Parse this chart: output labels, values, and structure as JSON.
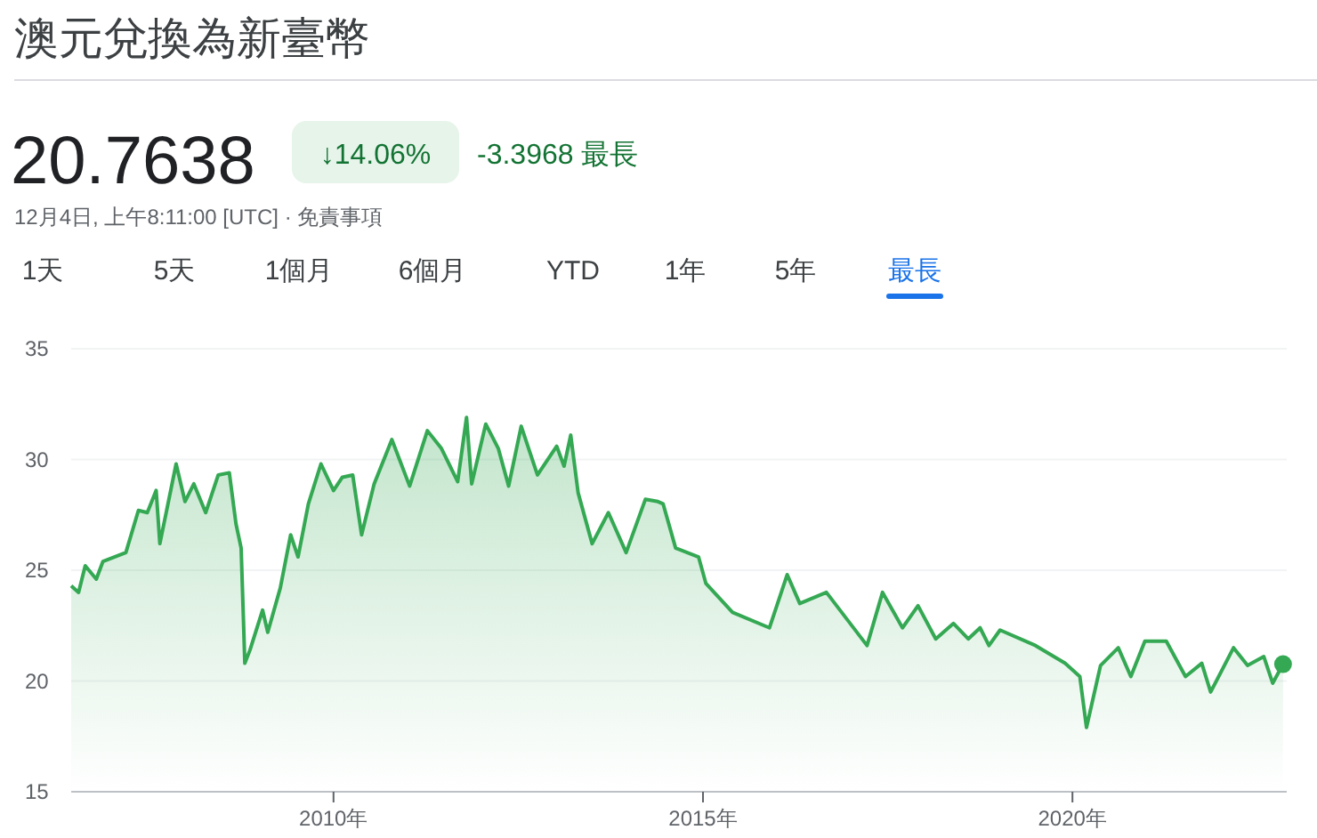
{
  "chart_data": {
    "type": "area",
    "title": "澳元兌換為新臺幣",
    "annotations": [
      "20.7638",
      "↓14.06%",
      "-3.3968 最長",
      "12月4日, 上午8:11:00 [UTC] · 免責事項",
      "1天",
      "5天",
      "1個月",
      "6個月",
      "YTD",
      "1年",
      "5年",
      "最長"
    ],
    "x": [
      2006.45,
      2006.55,
      2006.64,
      2006.79,
      2006.88,
      2007.19,
      2007.36,
      2007.48,
      2007.6,
      2007.65,
      2007.87,
      2007.99,
      2008.11,
      2008.27,
      2008.44,
      2008.59,
      2008.68,
      2008.75,
      2008.8,
      2008.87,
      2009.04,
      2009.11,
      2009.28,
      2009.42,
      2009.52,
      2009.66,
      2009.83,
      2010.0,
      2010.12,
      2010.26,
      2010.38,
      2010.55,
      2010.79,
      2011.03,
      2011.27,
      2011.46,
      2011.68,
      2011.8,
      2011.87,
      2012.06,
      2012.23,
      2012.37,
      2012.54,
      2012.76,
      2013.02,
      2013.12,
      2013.21,
      2013.31,
      2013.5,
      2013.72,
      2013.96,
      2014.22,
      2014.39,
      2014.46,
      2014.63,
      2014.94,
      2015.04,
      2015.4,
      2015.9,
      2016.14,
      2016.31,
      2016.67,
      2017.22,
      2017.43,
      2017.7,
      2017.91,
      2018.15,
      2018.39,
      2018.59,
      2018.75,
      2018.87,
      2019.02,
      2019.5,
      2019.9,
      2020.1,
      2020.19,
      2020.38,
      2020.62,
      2020.79,
      2020.98,
      2021.27,
      2021.53,
      2021.75,
      2021.87,
      2022.18,
      2022.37,
      2022.59,
      2022.71,
      2022.85
    ],
    "series": [
      {
        "color": "#34a853",
        "values": [
          24.3,
          24.0,
          25.2,
          24.6,
          25.4,
          25.8,
          27.7,
          27.6,
          28.6,
          26.2,
          29.8,
          28.1,
          28.9,
          27.6,
          29.3,
          29.4,
          27.1,
          26.0,
          20.8,
          21.4,
          23.2,
          22.2,
          24.2,
          26.6,
          25.6,
          28.0,
          29.8,
          28.6,
          29.2,
          29.3,
          26.6,
          28.9,
          30.9,
          28.8,
          31.3,
          30.5,
          29.0,
          31.9,
          28.9,
          31.6,
          30.5,
          28.8,
          31.5,
          29.3,
          30.6,
          29.7,
          31.1,
          28.5,
          26.2,
          27.6,
          25.8,
          28.2,
          28.1,
          28.0,
          26.0,
          25.6,
          24.4,
          23.1,
          22.4,
          24.8,
          23.5,
          24.0,
          21.6,
          24.0,
          22.4,
          23.4,
          21.9,
          22.6,
          21.9,
          22.4,
          21.6,
          22.3,
          21.6,
          20.8,
          20.2,
          17.9,
          20.7,
          21.5,
          20.2,
          21.8,
          21.8,
          20.2,
          20.8,
          19.5,
          21.5,
          20.7,
          21.1,
          19.9,
          20.76
        ]
      }
    ],
    "xlim": [
      2006.45,
      2022.9
    ],
    "xticks": [
      {
        "value": 2010,
        "label": "2010年"
      },
      {
        "value": 2015,
        "label": "2015年"
      },
      {
        "value": 2020,
        "label": "2020年"
      }
    ],
    "ylim": [
      15,
      35
    ],
    "yticks": [
      15,
      20,
      25,
      30,
      35
    ],
    "grid": "y"
  }
}
